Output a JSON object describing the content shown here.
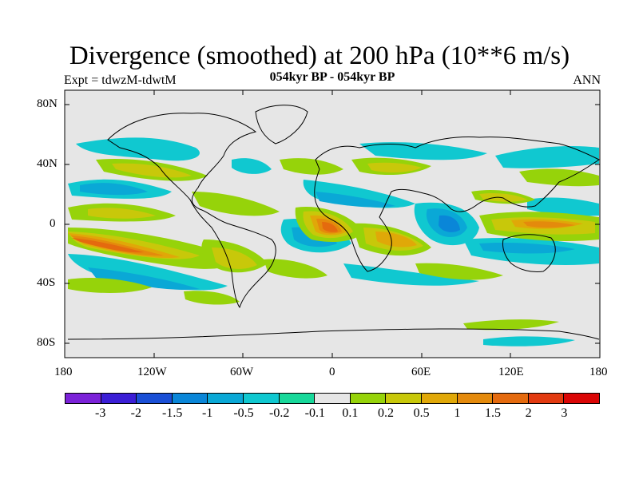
{
  "title": "Divergence (smoothed) at 200 hPa (10**6 m/s)",
  "subtitle_left": "Expt = tdwzM-tdwtM",
  "subtitle_center": "054kyr BP - 054kyr BP",
  "subtitle_right": "ANN",
  "lat_labels": [
    "80N",
    "40N",
    "0",
    "40S",
    "80S"
  ],
  "lon_labels": [
    "180",
    "120W",
    "60W",
    "0",
    "60E",
    "120E",
    "180"
  ],
  "colorbar": {
    "labels": [
      "-3",
      "-2",
      "-1.5",
      "-1",
      "-0.5",
      "-0.2",
      "-0.1",
      "0.1",
      "0.2",
      "0.5",
      "1",
      "1.5",
      "2",
      "3"
    ],
    "colors": [
      "#7b22d8",
      "#3b1ed6",
      "#1a4fd6",
      "#0a86d8",
      "#0aa8d6",
      "#10c8d0",
      "#18d89a",
      "#e6e6e6",
      "#96d30a",
      "#c8c80a",
      "#e0a808",
      "#e48a0c",
      "#e46a0e",
      "#e23a10",
      "#da0606"
    ]
  },
  "map_colors": {
    "background": "#e6e6e6",
    "neg_weak": "#10c8d0",
    "neg_mid": "#0aa8d6",
    "neg_strong": "#0a86d8",
    "neg_stronger": "#1a4fd6",
    "pos_weak": "#96d30a",
    "pos_mid": "#c8c80a",
    "pos_strong": "#e0a808",
    "pos_stronger": "#e48a0c",
    "pos_max": "#e23a10"
  }
}
